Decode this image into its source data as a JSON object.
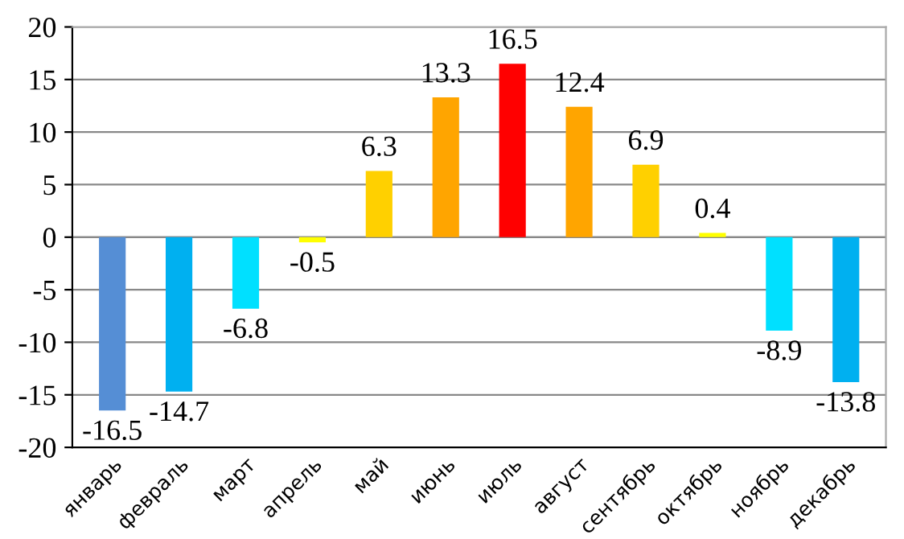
{
  "chart_data": {
    "type": "bar",
    "categories": [
      "январь",
      "февраль",
      "март",
      "апрель",
      "май",
      "июнь",
      "июль",
      "август",
      "сентябрь",
      "октябрь",
      "ноябрь",
      "декабрь"
    ],
    "values": [
      -16.5,
      -14.7,
      -6.8,
      -0.5,
      6.3,
      13.3,
      16.5,
      12.4,
      6.9,
      0.4,
      -8.9,
      -13.8
    ],
    "colors": [
      "#558ed5",
      "#00b0f0",
      "#00e0ff",
      "#ffff00",
      "#ffd000",
      "#ffa500",
      "#ff0000",
      "#ffa500",
      "#ffd000",
      "#ffff00",
      "#00e0ff",
      "#00b0f0"
    ],
    "ylim": [
      -20,
      20
    ],
    "yticks": [
      -20,
      -15,
      -10,
      -5,
      0,
      5,
      10,
      15,
      20
    ],
    "data_labels": true,
    "grid": "y"
  }
}
